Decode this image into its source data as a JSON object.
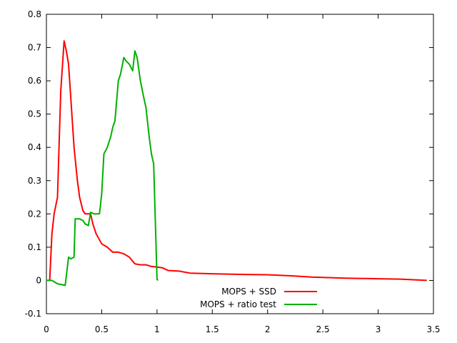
{
  "chart_data": {
    "type": "line",
    "title": "",
    "xlabel": "",
    "ylabel": "",
    "xlim": [
      0,
      3.5
    ],
    "ylim": [
      -0.1,
      0.8
    ],
    "xticks": [
      "0",
      "0.5",
      "1",
      "1.5",
      "2",
      "2.5",
      "3",
      "3.5"
    ],
    "yticks": [
      "-0.1",
      "0",
      "0.1",
      "0.2",
      "0.3",
      "0.4",
      "0.5",
      "0.6",
      "0.7",
      "0.8"
    ],
    "grid": false,
    "legend_position": "bottom-center",
    "series": [
      {
        "name": "MOPS + SSD",
        "color": "#ff0000",
        "x": [
          0.03,
          0.05,
          0.07,
          0.1,
          0.13,
          0.16,
          0.18,
          0.2,
          0.22,
          0.25,
          0.28,
          0.3,
          0.33,
          0.35,
          0.38,
          0.4,
          0.42,
          0.45,
          0.5,
          0.55,
          0.6,
          0.65,
          0.7,
          0.75,
          0.8,
          0.85,
          0.9,
          0.95,
          1.0,
          1.05,
          1.1,
          1.2,
          1.3,
          1.5,
          1.8,
          2.0,
          2.2,
          2.4,
          2.7,
          3.0,
          3.2,
          3.44
        ],
        "y": [
          0.0,
          0.14,
          0.2,
          0.25,
          0.57,
          0.72,
          0.69,
          0.65,
          0.55,
          0.4,
          0.3,
          0.25,
          0.21,
          0.2,
          0.2,
          0.2,
          0.17,
          0.14,
          0.11,
          0.1,
          0.085,
          0.085,
          0.08,
          0.07,
          0.05,
          0.047,
          0.047,
          0.042,
          0.04,
          0.038,
          0.03,
          0.028,
          0.022,
          0.02,
          0.018,
          0.017,
          0.014,
          0.01,
          0.007,
          0.005,
          0.004,
          0.0
        ]
      },
      {
        "name": "MOPS + ratio test",
        "color": "#00b000",
        "x": [
          0.0,
          0.05,
          0.1,
          0.17,
          0.2,
          0.22,
          0.25,
          0.26,
          0.3,
          0.33,
          0.35,
          0.38,
          0.4,
          0.43,
          0.48,
          0.5,
          0.52,
          0.55,
          0.58,
          0.6,
          0.62,
          0.65,
          0.67,
          0.7,
          0.72,
          0.75,
          0.78,
          0.8,
          0.82,
          0.85,
          0.88,
          0.9,
          0.93,
          0.95,
          0.97,
          1.0,
          1.01
        ],
        "y": [
          0.0,
          0.0,
          -0.01,
          -0.015,
          0.07,
          0.065,
          0.07,
          0.185,
          0.185,
          0.18,
          0.17,
          0.165,
          0.205,
          0.2,
          0.2,
          0.26,
          0.38,
          0.4,
          0.43,
          0.46,
          0.48,
          0.6,
          0.62,
          0.67,
          0.66,
          0.65,
          0.63,
          0.69,
          0.67,
          0.6,
          0.55,
          0.52,
          0.43,
          0.38,
          0.35,
          0.003,
          0.0
        ]
      }
    ]
  }
}
